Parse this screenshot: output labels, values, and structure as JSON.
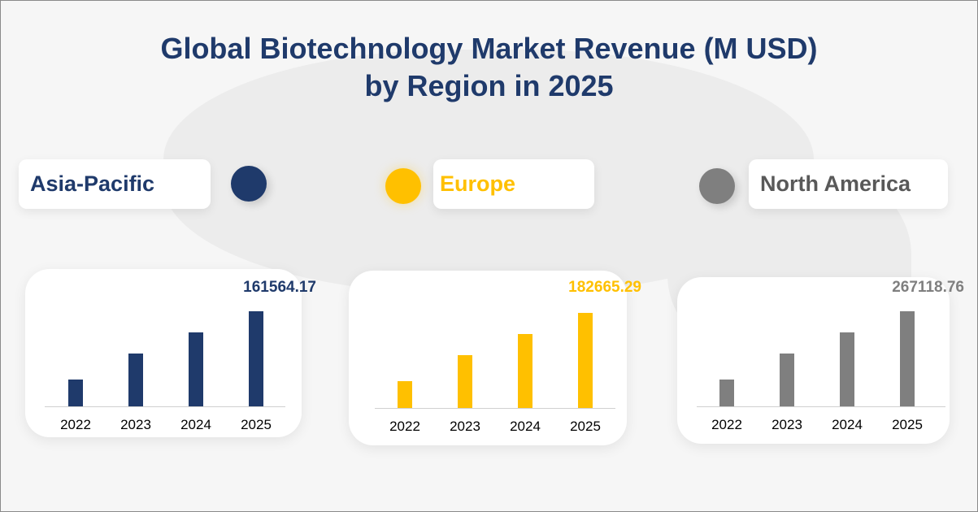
{
  "title_line1": "Global Biotechnology Market Revenue (M USD)",
  "title_line2": "by Region in 2025",
  "chart_data": [
    {
      "type": "bar",
      "name": "Asia-Pacific",
      "color": "#1f3a6b",
      "categories": [
        "2022",
        "2023",
        "2024",
        "2025"
      ],
      "values": [
        45500,
        89800,
        125700,
        161564.17
      ],
      "data_label": "161564.17"
    },
    {
      "type": "bar",
      "name": "Europe",
      "color": "#ffc000",
      "categories": [
        "2022",
        "2023",
        "2024",
        "2025"
      ],
      "values": [
        51500,
        101500,
        142100,
        182665.29
      ],
      "data_label": "182665.29"
    },
    {
      "type": "bar",
      "name": "North America",
      "color": "#7f7f7f",
      "categories": [
        "2022",
        "2023",
        "2024",
        "2025"
      ],
      "values": [
        75300,
        148400,
        207700,
        267118.76
      ],
      "data_label": "267118.76"
    }
  ]
}
